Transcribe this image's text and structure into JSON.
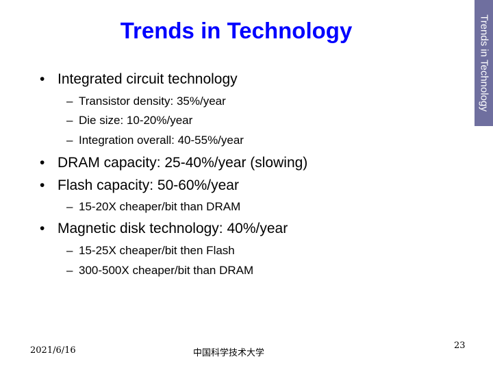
{
  "slide": {
    "title": "Trends in Technology",
    "side_label": "Trends in Technology",
    "bullets": [
      {
        "marker": "•",
        "text": "Integrated circuit technology"
      },
      {
        "marker": "•",
        "text": "DRAM capacity:  25-40%/year (slowing)"
      },
      {
        "marker": "•",
        "text": "Flash capacity:  50-60%/year"
      },
      {
        "marker": "•",
        "text": "Magnetic disk technology:  40%/year"
      }
    ],
    "sub_bullets": [
      {
        "marker": "–",
        "text": "Transistor density:  35%/year"
      },
      {
        "marker": "–",
        "text": "Die size:  10-20%/year"
      },
      {
        "marker": "–",
        "text": "Integration overall:  40-55%/year"
      },
      {
        "marker": "–",
        "text": "15-20X cheaper/bit than DRAM"
      },
      {
        "marker": "–",
        "text": "15-25X cheaper/bit then Flash"
      },
      {
        "marker": "–",
        "text": "300-500X cheaper/bit than DRAM"
      }
    ],
    "footer": {
      "date": "2021/6/16",
      "center": "中国科学技术大学",
      "page_number": "23"
    }
  }
}
